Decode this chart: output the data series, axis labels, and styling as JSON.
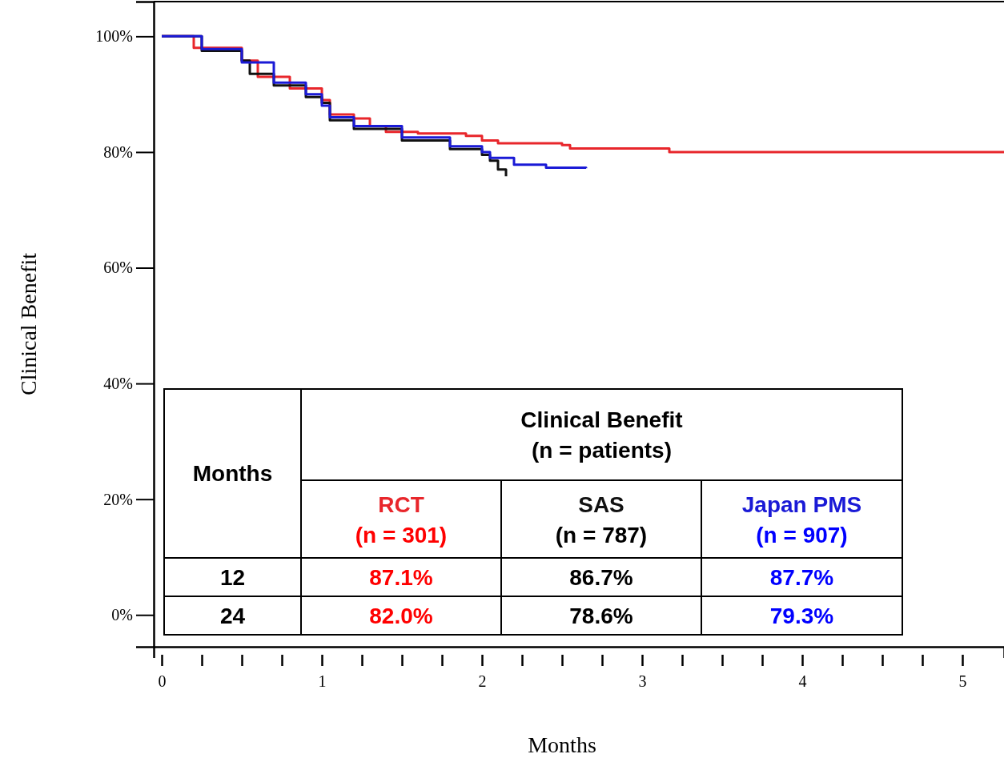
{
  "chart_data": {
    "type": "step",
    "xlabel": "Months",
    "ylabel": "Clinical Benefit",
    "xlim": [
      -0.05,
      5.26
    ],
    "ylim": [
      -5.5,
      106
    ],
    "xticks": [
      0,
      {
        "value": 0.25,
        "label": null
      },
      {
        "value": 0.5,
        "label": null
      },
      {
        "value": 0.75,
        "label": null
      },
      1,
      {
        "value": 1.25,
        "label": null
      },
      {
        "value": 1.5,
        "label": null
      },
      {
        "value": 1.75,
        "label": null
      },
      2,
      {
        "value": 2.25,
        "label": null
      },
      {
        "value": 2.5,
        "label": null
      },
      {
        "value": 2.75,
        "label": null
      },
      3,
      {
        "value": 3.25,
        "label": null
      },
      {
        "value": 3.5,
        "label": null
      },
      {
        "value": 3.75,
        "label": null
      },
      4,
      {
        "value": 4.25,
        "label": null
      },
      {
        "value": 4.5,
        "label": null
      },
      {
        "value": 4.75,
        "label": null
      },
      5
    ],
    "yticks": [
      {
        "value": 0,
        "label": "0%"
      },
      {
        "value": 20,
        "label": "20%"
      },
      {
        "value": 40,
        "label": "40%"
      },
      {
        "value": 60,
        "label": "60%"
      },
      {
        "value": 80,
        "label": "80%"
      },
      {
        "value": 100,
        "label": "100%"
      }
    ],
    "series": [
      {
        "name": "RCT",
        "color": "#e8262b",
        "x": [
          0,
          0.2,
          0.5,
          0.6,
          0.8,
          1.0,
          1.05,
          1.2,
          1.3,
          1.4,
          1.6,
          1.9,
          2.0,
          2.1,
          2.5,
          2.55,
          3.17,
          5.26
        ],
        "values": [
          100,
          98,
          95.8,
          93,
          91,
          89,
          86.5,
          85.8,
          84.5,
          83.5,
          83.2,
          82.8,
          82,
          81.5,
          81.2,
          80.6,
          80,
          80
        ]
      },
      {
        "name": "SAS",
        "color": "#111111",
        "x": [
          0,
          0.25,
          0.5,
          0.55,
          0.7,
          0.9,
          1.0,
          1.05,
          1.2,
          1.5,
          1.8,
          2.0,
          2.05,
          2.1,
          2.15
        ],
        "values": [
          100,
          97.5,
          95.8,
          93.5,
          91.5,
          89.5,
          88.5,
          85.5,
          84,
          82,
          80.5,
          79.5,
          78.5,
          77,
          75.8
        ]
      },
      {
        "name": "Japan PMS",
        "color": "#1a1ad6",
        "x": [
          0,
          0.25,
          0.5,
          0.7,
          0.9,
          1.0,
          1.05,
          1.2,
          1.5,
          1.8,
          2.0,
          2.05,
          2.2,
          2.4,
          2.65
        ],
        "values": [
          100,
          97.8,
          95.5,
          92,
          90,
          88,
          86,
          84.5,
          82.5,
          81,
          80,
          79,
          77.8,
          77.3,
          77.2
        ]
      }
    ],
    "annotations": [
      "Months",
      "Clinical Benefit",
      "(n = patients)",
      "(n = 301)",
      "(n = 787)",
      "(n = 907)",
      "12",
      "87.1%",
      "86.7%",
      "87.7%",
      "24",
      "82.0%",
      "78.6%",
      "79.3%"
    ]
  }
}
